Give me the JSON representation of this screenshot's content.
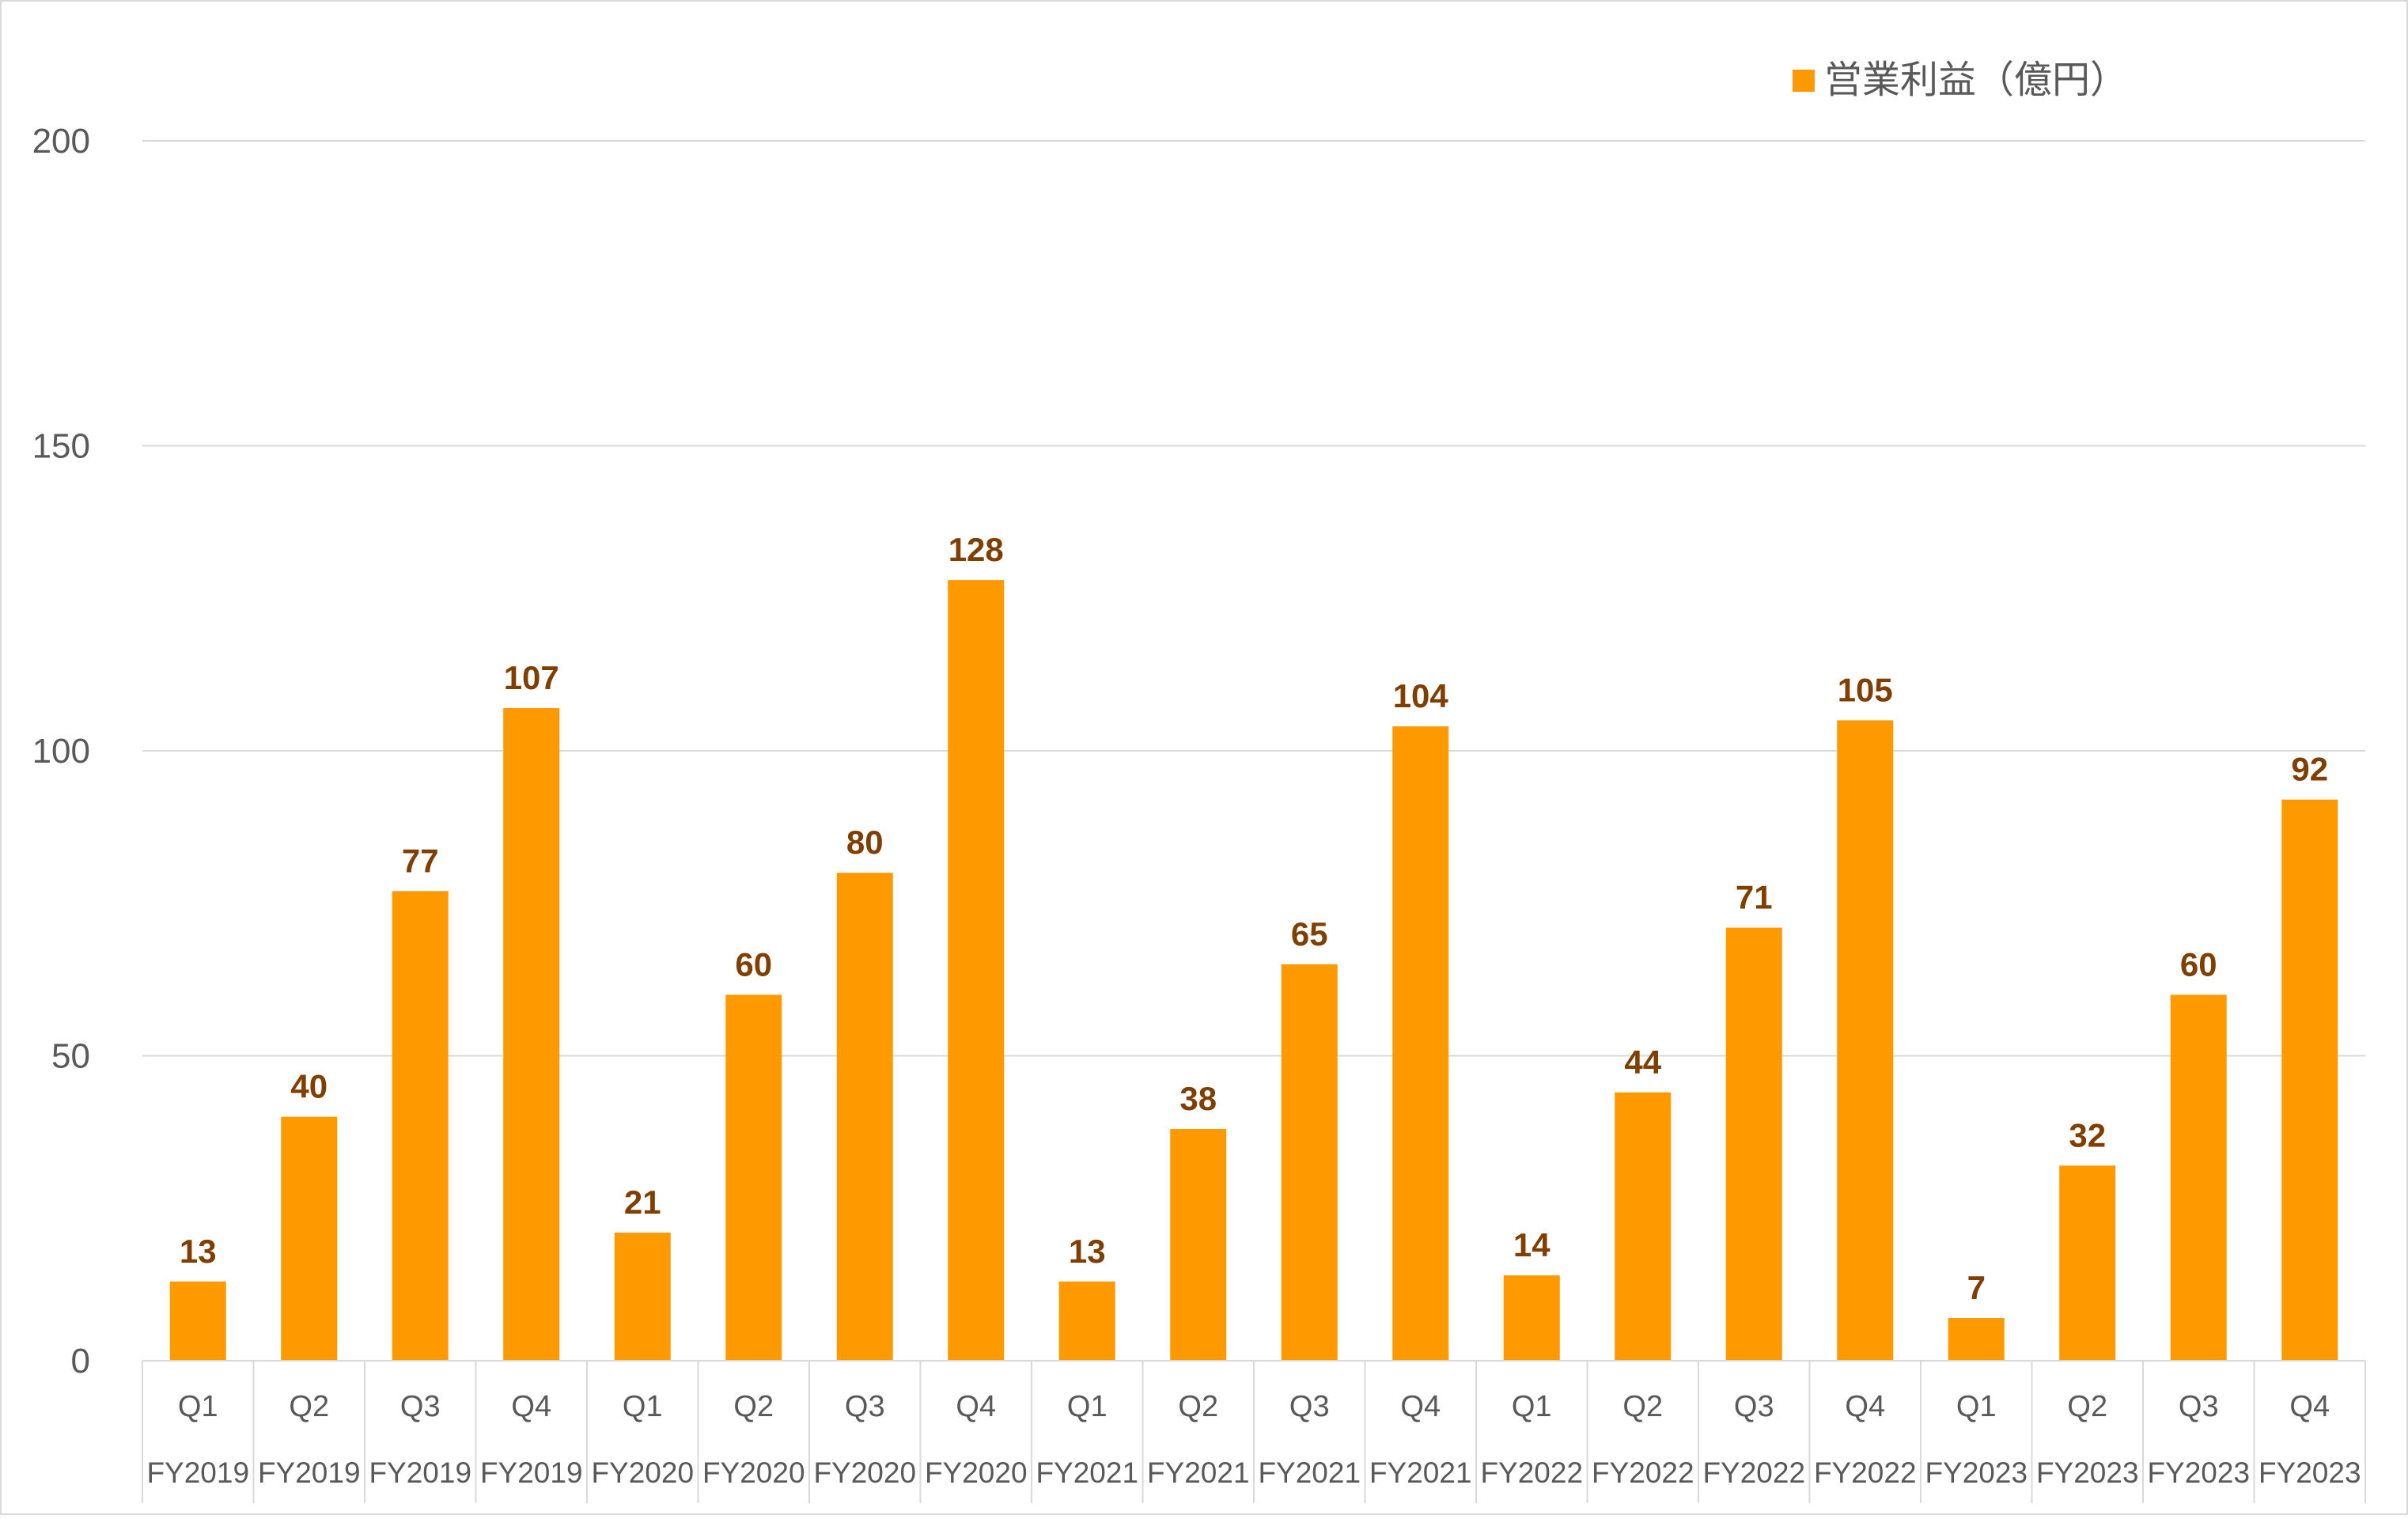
{
  "chart_data": {
    "type": "bar",
    "series": [
      {
        "name": "営業利益（億円）",
        "color": "#ff9900",
        "values": [
          13,
          40,
          77,
          107,
          21,
          60,
          80,
          128,
          13,
          38,
          65,
          104,
          14,
          44,
          71,
          105,
          7,
          32,
          60,
          92
        ]
      }
    ],
    "categories": [
      {
        "quarter": "Q1",
        "fiscal_year": "FY2019"
      },
      {
        "quarter": "Q2",
        "fiscal_year": "FY2019"
      },
      {
        "quarter": "Q3",
        "fiscal_year": "FY2019"
      },
      {
        "quarter": "Q4",
        "fiscal_year": "FY2019"
      },
      {
        "quarter": "Q1",
        "fiscal_year": "FY2020"
      },
      {
        "quarter": "Q2",
        "fiscal_year": "FY2020"
      },
      {
        "quarter": "Q3",
        "fiscal_year": "FY2020"
      },
      {
        "quarter": "Q4",
        "fiscal_year": "FY2020"
      },
      {
        "quarter": "Q1",
        "fiscal_year": "FY2021"
      },
      {
        "quarter": "Q2",
        "fiscal_year": "FY2021"
      },
      {
        "quarter": "Q3",
        "fiscal_year": "FY2021"
      },
      {
        "quarter": "Q4",
        "fiscal_year": "FY2021"
      },
      {
        "quarter": "Q1",
        "fiscal_year": "FY2022"
      },
      {
        "quarter": "Q2",
        "fiscal_year": "FY2022"
      },
      {
        "quarter": "Q3",
        "fiscal_year": "FY2022"
      },
      {
        "quarter": "Q4",
        "fiscal_year": "FY2022"
      },
      {
        "quarter": "Q1",
        "fiscal_year": "FY2023"
      },
      {
        "quarter": "Q2",
        "fiscal_year": "FY2023"
      },
      {
        "quarter": "Q3",
        "fiscal_year": "FY2023"
      },
      {
        "quarter": "Q4",
        "fiscal_year": "FY2023"
      }
    ],
    "ylim": [
      0,
      200
    ],
    "yticks": [
      "0",
      "50",
      "100",
      "150",
      "200"
    ],
    "grid": true,
    "legend_position": "top-right",
    "data_label_color": "#7f3f00",
    "gridline_color": "#d9d9d9"
  }
}
